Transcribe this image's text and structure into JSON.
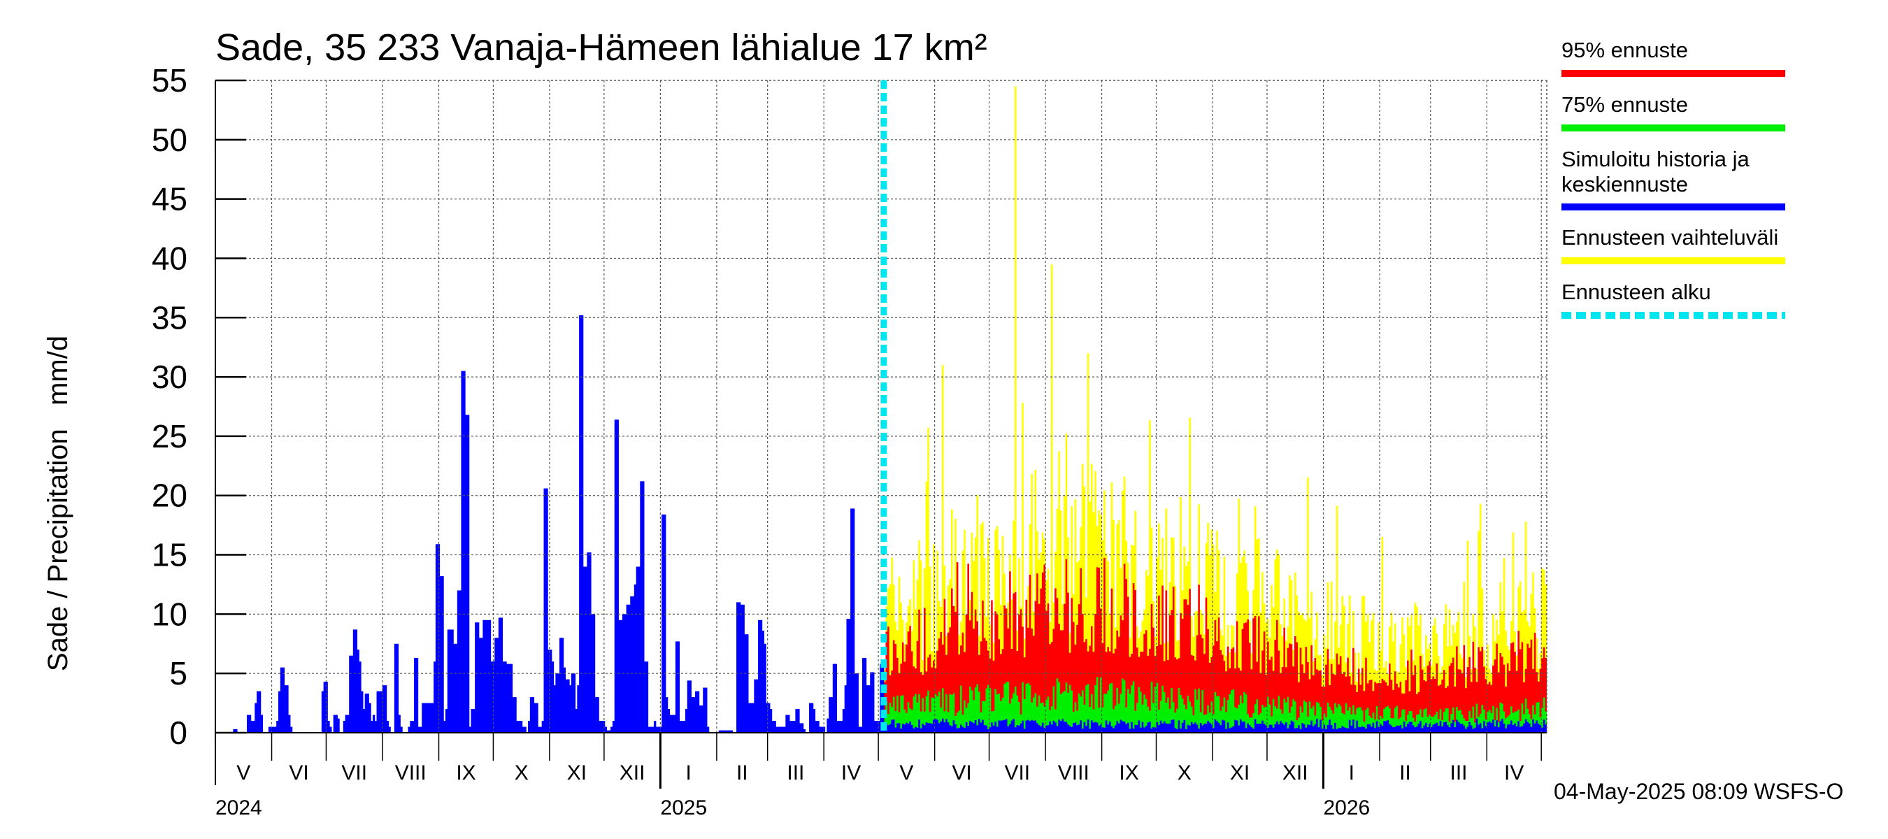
{
  "chart_data": {
    "type": "bar",
    "title": "Sade, 35 233 Vanaja-Hämeen lähialue 17 km²",
    "ylabel": "Sade / Precipitation   mm/d",
    "ylim": [
      0,
      55
    ],
    "yticks": [
      "0",
      "5",
      "10",
      "15",
      "20",
      "25",
      "30",
      "35",
      "40",
      "45",
      "50",
      "55"
    ],
    "months": [
      "V",
      "VI",
      "VII",
      "VIII",
      "IX",
      "X",
      "XI",
      "XII",
      "I",
      "II",
      "III",
      "IV",
      "V",
      "VI",
      "VII",
      "VIII",
      "IX",
      "X",
      "XI",
      "XII",
      "I",
      "II",
      "III",
      "IV"
    ],
    "years": [
      "2024",
      "2025",
      "2026"
    ],
    "x_start": "2024-05-01",
    "x_end": "2026-05-04",
    "forecast_start": "2025-05-04",
    "history_series": {
      "name": "Simuloitu historia ja keskiennuste",
      "values": [
        0,
        0,
        0,
        0,
        0,
        0,
        0,
        0,
        0,
        0.3,
        0.3,
        0,
        0,
        0,
        0,
        0,
        1.5,
        1.5,
        1,
        1,
        2.5,
        3.5,
        3.5,
        1.5,
        0,
        0,
        0,
        0.5,
        0.5,
        0.5,
        0.5,
        1,
        3.5,
        5.5,
        5.5,
        4,
        4,
        1.5,
        0.5,
        0,
        0,
        0,
        0,
        0,
        0,
        0,
        0,
        0,
        0,
        0,
        0,
        0,
        0,
        0,
        3.5,
        4.3,
        4.3,
        1,
        0.5,
        0,
        1.5,
        1.5,
        1.2,
        0,
        0,
        1,
        1.5,
        1.5,
        6.5,
        6.5,
        8.7,
        8.7,
        7,
        6,
        3.5,
        2,
        3.3,
        3.3,
        2.5,
        1,
        1.5,
        1,
        3.5,
        3.5,
        3.5,
        4,
        4,
        1,
        0.5,
        0,
        0,
        7.5,
        7.5,
        1.5,
        0.5,
        0,
        0,
        0,
        0.5,
        1,
        1,
        6.3,
        6.3,
        0.5,
        0.5,
        2.5,
        2.5,
        2.5,
        2.5,
        2.5,
        2.5,
        6,
        15.9,
        15.9,
        13.2,
        13.2,
        1,
        2,
        8.7,
        8.7,
        8.7,
        7.5,
        7.5,
        12,
        12,
        30.5,
        30.5,
        26.8,
        26.8,
        0.5,
        2,
        2,
        9.3,
        9.3,
        8,
        8,
        9.5,
        9.5,
        9.5,
        9.5,
        6,
        6,
        8,
        8,
        9.7,
        9.7,
        6,
        6,
        5.8,
        5.8,
        5.8,
        3,
        3,
        1,
        1,
        1,
        0.5,
        0.5,
        0,
        1,
        3,
        3,
        2.5,
        2.5,
        0.5,
        0.5,
        1,
        20.6,
        20.6,
        7,
        7,
        6,
        4,
        5,
        5,
        8,
        8,
        5.5,
        4.5,
        4.5,
        4,
        5,
        5,
        2,
        4,
        35.2,
        35.2,
        14,
        14,
        15.2,
        15.2,
        10,
        10,
        3,
        3,
        1,
        1,
        1,
        0.5,
        0.2,
        0.2,
        0.5,
        1,
        26.4,
        26.4,
        9.5,
        9.5,
        10,
        10,
        10.8,
        10.8,
        11.5,
        11.5,
        12.5,
        14,
        14,
        21.2,
        21.2,
        6,
        6,
        0.5,
        0.5,
        0.5,
        1,
        0.5,
        0.5,
        0.5,
        18.4,
        18.4,
        3,
        2,
        1.5,
        1.5,
        1.5,
        7.7,
        7.7,
        1,
        1,
        1,
        2,
        4.4,
        4.4,
        3,
        3,
        3.5,
        3.5,
        2.3,
        2.3,
        3.8,
        3.8,
        0.5,
        0,
        0,
        0,
        0,
        0,
        0.2,
        0.2,
        0.2,
        0.2,
        0.2,
        0.2,
        0.2,
        0,
        0,
        11,
        11,
        10.8,
        10.8,
        8.3,
        8.3,
        2.5,
        2.5,
        2.5,
        4.5,
        4.5,
        9.5,
        9.5,
        8.6,
        7.5,
        2.5,
        2.5,
        2,
        1,
        1,
        0.5,
        0.5,
        0.5,
        0.5,
        0.5,
        1.5,
        1.5,
        1,
        1,
        1,
        2,
        2,
        0.8,
        0.8,
        0.3,
        0,
        0,
        2.5,
        2.5,
        2,
        1,
        1,
        0.5,
        0.5,
        0.5,
        0,
        1.2,
        3,
        3,
        5.8,
        5.8,
        1,
        1,
        1,
        2,
        4,
        9.6,
        9.6,
        18.9,
        18.9,
        5,
        5,
        0.5,
        0.5,
        6.3,
        6.3,
        4,
        4,
        5.1,
        5.1,
        1,
        1,
        1,
        5.8,
        5.8
      ],
      "forecast_mean_approx": 0.9
    },
    "forecast_bands": [
      {
        "name": "Ennusteen vaihteluväli",
        "color": "#ffff00",
        "typical_max": 15,
        "peaks": [
          {
            "date": "2025-07-15",
            "value": 54.5
          },
          {
            "date": "2025-08-04",
            "value": 39.5
          },
          {
            "date": "2025-08-24",
            "value": 32
          },
          {
            "date": "2025-06-05",
            "value": 31
          }
        ]
      },
      {
        "name": "95% ennuste",
        "color": "#ff0000",
        "typical_max": 10,
        "peak": 15
      },
      {
        "name": "75% ennuste",
        "color": "#00ee00",
        "typical_max": 3,
        "peak": 5.5
      }
    ],
    "legend": [
      {
        "label": "95% ennuste",
        "color": "#ff0000"
      },
      {
        "label": "75% ennuste",
        "color": "#00ee00"
      },
      {
        "label": "Simuloitu historia ja keskiennuste",
        "lines": [
          "Simuloitu historia ja",
          "keskiennuste"
        ],
        "color": "#0000ff"
      },
      {
        "label": "Ennusteen vaihteluväli",
        "color": "#ffff00"
      },
      {
        "label": "Ennusteen alku",
        "color": "#00e5ee",
        "style": "dashed"
      }
    ],
    "footer": "04-May-2025 08:09 WSFS-O"
  }
}
